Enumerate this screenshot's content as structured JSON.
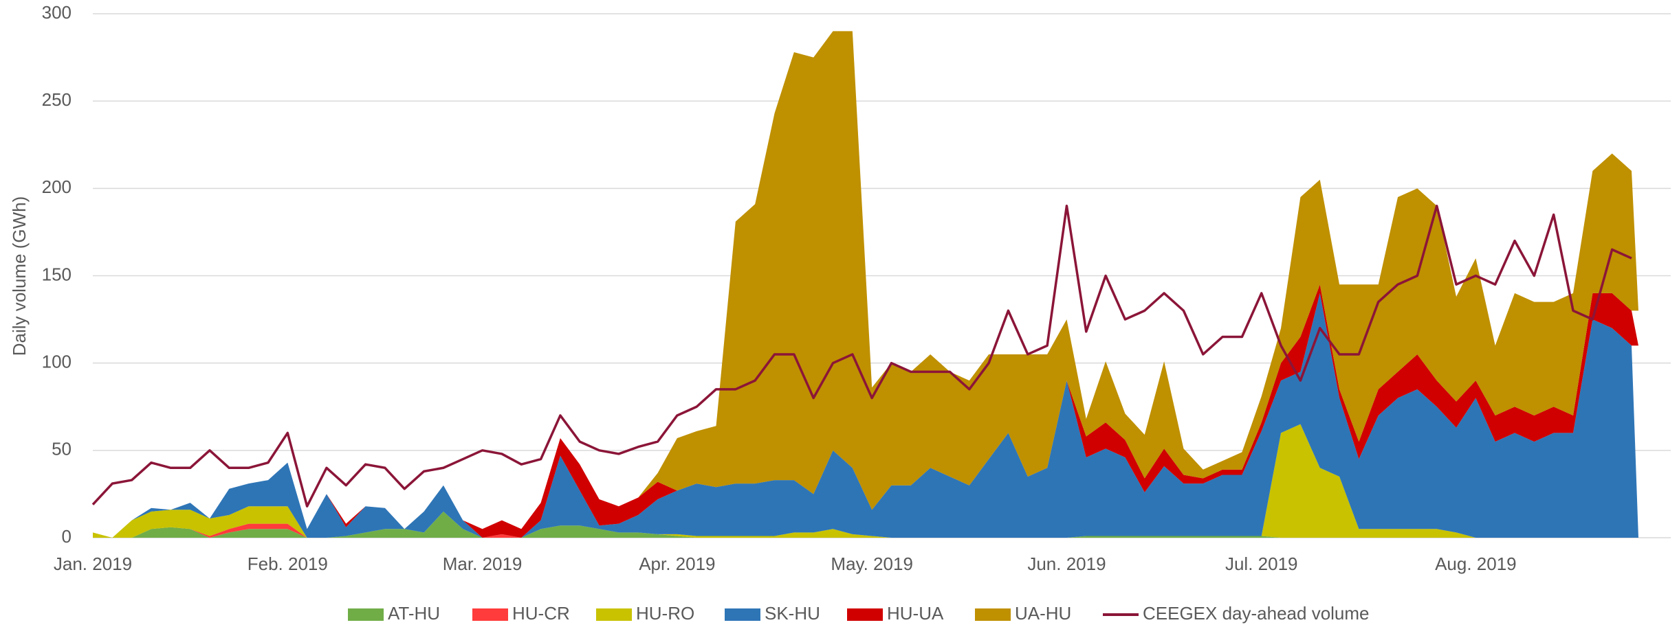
{
  "chart_data": {
    "type": "area",
    "y_label": "Daily volume (GWh)",
    "categories": [
      "Jan. 2019",
      null,
      null,
      null,
      null,
      null,
      null,
      null,
      null,
      null,
      "Feb. 2019",
      null,
      null,
      null,
      null,
      null,
      null,
      null,
      null,
      null,
      "Mar. 2019",
      null,
      null,
      null,
      null,
      null,
      null,
      null,
      null,
      null,
      "Apr. 2019",
      null,
      null,
      null,
      null,
      null,
      null,
      null,
      null,
      null,
      "May. 2019",
      null,
      null,
      null,
      null,
      null,
      null,
      null,
      null,
      null,
      "Jun. 2019",
      null,
      null,
      null,
      null,
      null,
      null,
      null,
      null,
      null,
      "Jul. 2019",
      null,
      null,
      null,
      null,
      null,
      null,
      null,
      null,
      null,
      null,
      "Aug. 2019",
      null,
      null,
      null,
      null,
      null,
      null,
      null,
      null
    ],
    "ylim": [
      0,
      300
    ],
    "yticks": [
      0,
      50,
      100,
      150,
      200,
      250,
      300
    ],
    "grid": true,
    "stacked": true,
    "legend": "bottom",
    "series": [
      {
        "name": "AT-HU",
        "color": "#70ad47",
        "values": [
          0,
          0,
          0,
          5,
          6,
          5,
          0,
          3,
          5,
          5,
          5,
          0,
          0,
          1,
          3,
          5,
          5,
          3,
          15,
          5,
          0,
          0,
          0,
          5,
          7,
          7,
          5,
          3,
          3,
          2,
          1,
          0,
          0,
          0,
          0,
          0,
          0,
          0,
          0,
          0,
          0,
          0,
          0,
          0,
          0,
          0,
          0,
          0,
          0,
          0,
          0,
          1,
          1,
          1,
          1,
          1,
          1,
          1,
          1,
          1,
          1,
          0,
          0,
          0,
          0,
          0,
          0,
          0,
          0,
          0,
          0,
          0,
          0,
          0,
          0,
          0,
          0,
          0,
          0,
          0
        ]
      },
      {
        "name": "HU-CR",
        "color": "#ff3b3b",
        "values": [
          0,
          0,
          0,
          0,
          0,
          0,
          1,
          2,
          3,
          3,
          3,
          0,
          0,
          0,
          0,
          0,
          0,
          0,
          0,
          0,
          0,
          2,
          0,
          0,
          0,
          0,
          0,
          0,
          0,
          0,
          0,
          0,
          0,
          0,
          0,
          0,
          0,
          0,
          0,
          0,
          0,
          0,
          0,
          0,
          0,
          0,
          0,
          0,
          0,
          0,
          0,
          0,
          0,
          0,
          0,
          0,
          0,
          0,
          0,
          0,
          0,
          0,
          0,
          0,
          0,
          0,
          0,
          0,
          0,
          0,
          0,
          0,
          0,
          0,
          0,
          0,
          0,
          0,
          0,
          0
        ]
      },
      {
        "name": "HU-RO",
        "color": "#c8c200",
        "values": [
          3,
          0,
          10,
          10,
          10,
          11,
          10,
          8,
          10,
          10,
          10,
          0,
          0,
          0,
          0,
          0,
          0,
          0,
          0,
          0,
          0,
          0,
          0,
          0,
          0,
          0,
          0,
          0,
          0,
          0,
          1,
          1,
          1,
          1,
          1,
          1,
          3,
          3,
          5,
          2,
          1,
          0,
          0,
          0,
          0,
          0,
          0,
          0,
          0,
          0,
          0,
          0,
          0,
          0,
          0,
          0,
          0,
          0,
          0,
          0,
          0,
          60,
          65,
          40,
          35,
          5,
          5,
          5,
          5,
          5,
          3,
          0,
          0,
          0,
          0,
          0,
          0,
          0,
          0,
          0
        ]
      },
      {
        "name": "SK-HU",
        "color": "#2e75b6",
        "values": [
          0,
          0,
          0,
          2,
          0,
          4,
          0,
          15,
          13,
          15,
          25,
          5,
          25,
          5,
          15,
          12,
          0,
          12,
          15,
          5,
          0,
          0,
          0,
          5,
          40,
          20,
          2,
          5,
          10,
          20,
          25,
          30,
          28,
          30,
          30,
          32,
          30,
          22,
          45,
          38,
          15,
          30,
          30,
          40,
          35,
          30,
          45,
          60,
          35,
          40,
          90,
          45,
          50,
          45,
          25,
          40,
          30,
          30,
          35,
          35,
          60,
          30,
          30,
          100,
          45,
          40,
          65,
          75,
          80,
          70,
          60,
          80,
          55,
          60,
          55,
          60,
          60,
          125,
          120,
          110
        ]
      },
      {
        "name": "HU-UA",
        "color": "#d00000",
        "values": [
          0,
          0,
          0,
          0,
          0,
          0,
          0,
          0,
          0,
          0,
          0,
          0,
          0,
          2,
          0,
          0,
          0,
          0,
          0,
          0,
          5,
          8,
          5,
          10,
          10,
          15,
          15,
          10,
          10,
          10,
          0,
          0,
          0,
          0,
          0,
          0,
          0,
          0,
          0,
          0,
          0,
          0,
          0,
          0,
          0,
          0,
          0,
          0,
          0,
          0,
          0,
          12,
          15,
          10,
          8,
          10,
          5,
          3,
          3,
          3,
          5,
          10,
          20,
          5,
          5,
          10,
          15,
          15,
          20,
          15,
          15,
          10,
          15,
          15,
          15,
          15,
          10,
          15,
          20,
          20
        ]
      },
      {
        "name": "UA-HU",
        "color": "#bf9000",
        "values": [
          0,
          0,
          0,
          0,
          0,
          0,
          0,
          0,
          0,
          0,
          0,
          0,
          0,
          0,
          0,
          0,
          0,
          0,
          0,
          0,
          0,
          0,
          0,
          0,
          0,
          0,
          0,
          0,
          0,
          5,
          30,
          30,
          35,
          150,
          160,
          210,
          245,
          250,
          240,
          250,
          70,
          70,
          65,
          65,
          60,
          60,
          60,
          45,
          70,
          65,
          35,
          10,
          35,
          15,
          25,
          50,
          15,
          5,
          5,
          10,
          15,
          20,
          80,
          60,
          60,
          90,
          60,
          100,
          95,
          100,
          60,
          70,
          40,
          65,
          65,
          60,
          70,
          70,
          80,
          80
        ]
      },
      {
        "name": "CEEGEX day-ahead volume",
        "color": "#8b1538",
        "kind": "line",
        "values": [
          19,
          31,
          33,
          43,
          40,
          40,
          50,
          40,
          40,
          43,
          60,
          18,
          40,
          30,
          42,
          40,
          28,
          38,
          40,
          45,
          50,
          48,
          42,
          45,
          70,
          55,
          50,
          48,
          52,
          55,
          70,
          75,
          85,
          85,
          90,
          105,
          105,
          80,
          100,
          105,
          80,
          100,
          95,
          95,
          95,
          85,
          100,
          130,
          105,
          110,
          190,
          118,
          150,
          125,
          130,
          140,
          130,
          105,
          115,
          115,
          140,
          110,
          90,
          120,
          105,
          105,
          135,
          145,
          150,
          190,
          145,
          150,
          145,
          170,
          150,
          185,
          130,
          125,
          165,
          160
        ]
      }
    ]
  }
}
